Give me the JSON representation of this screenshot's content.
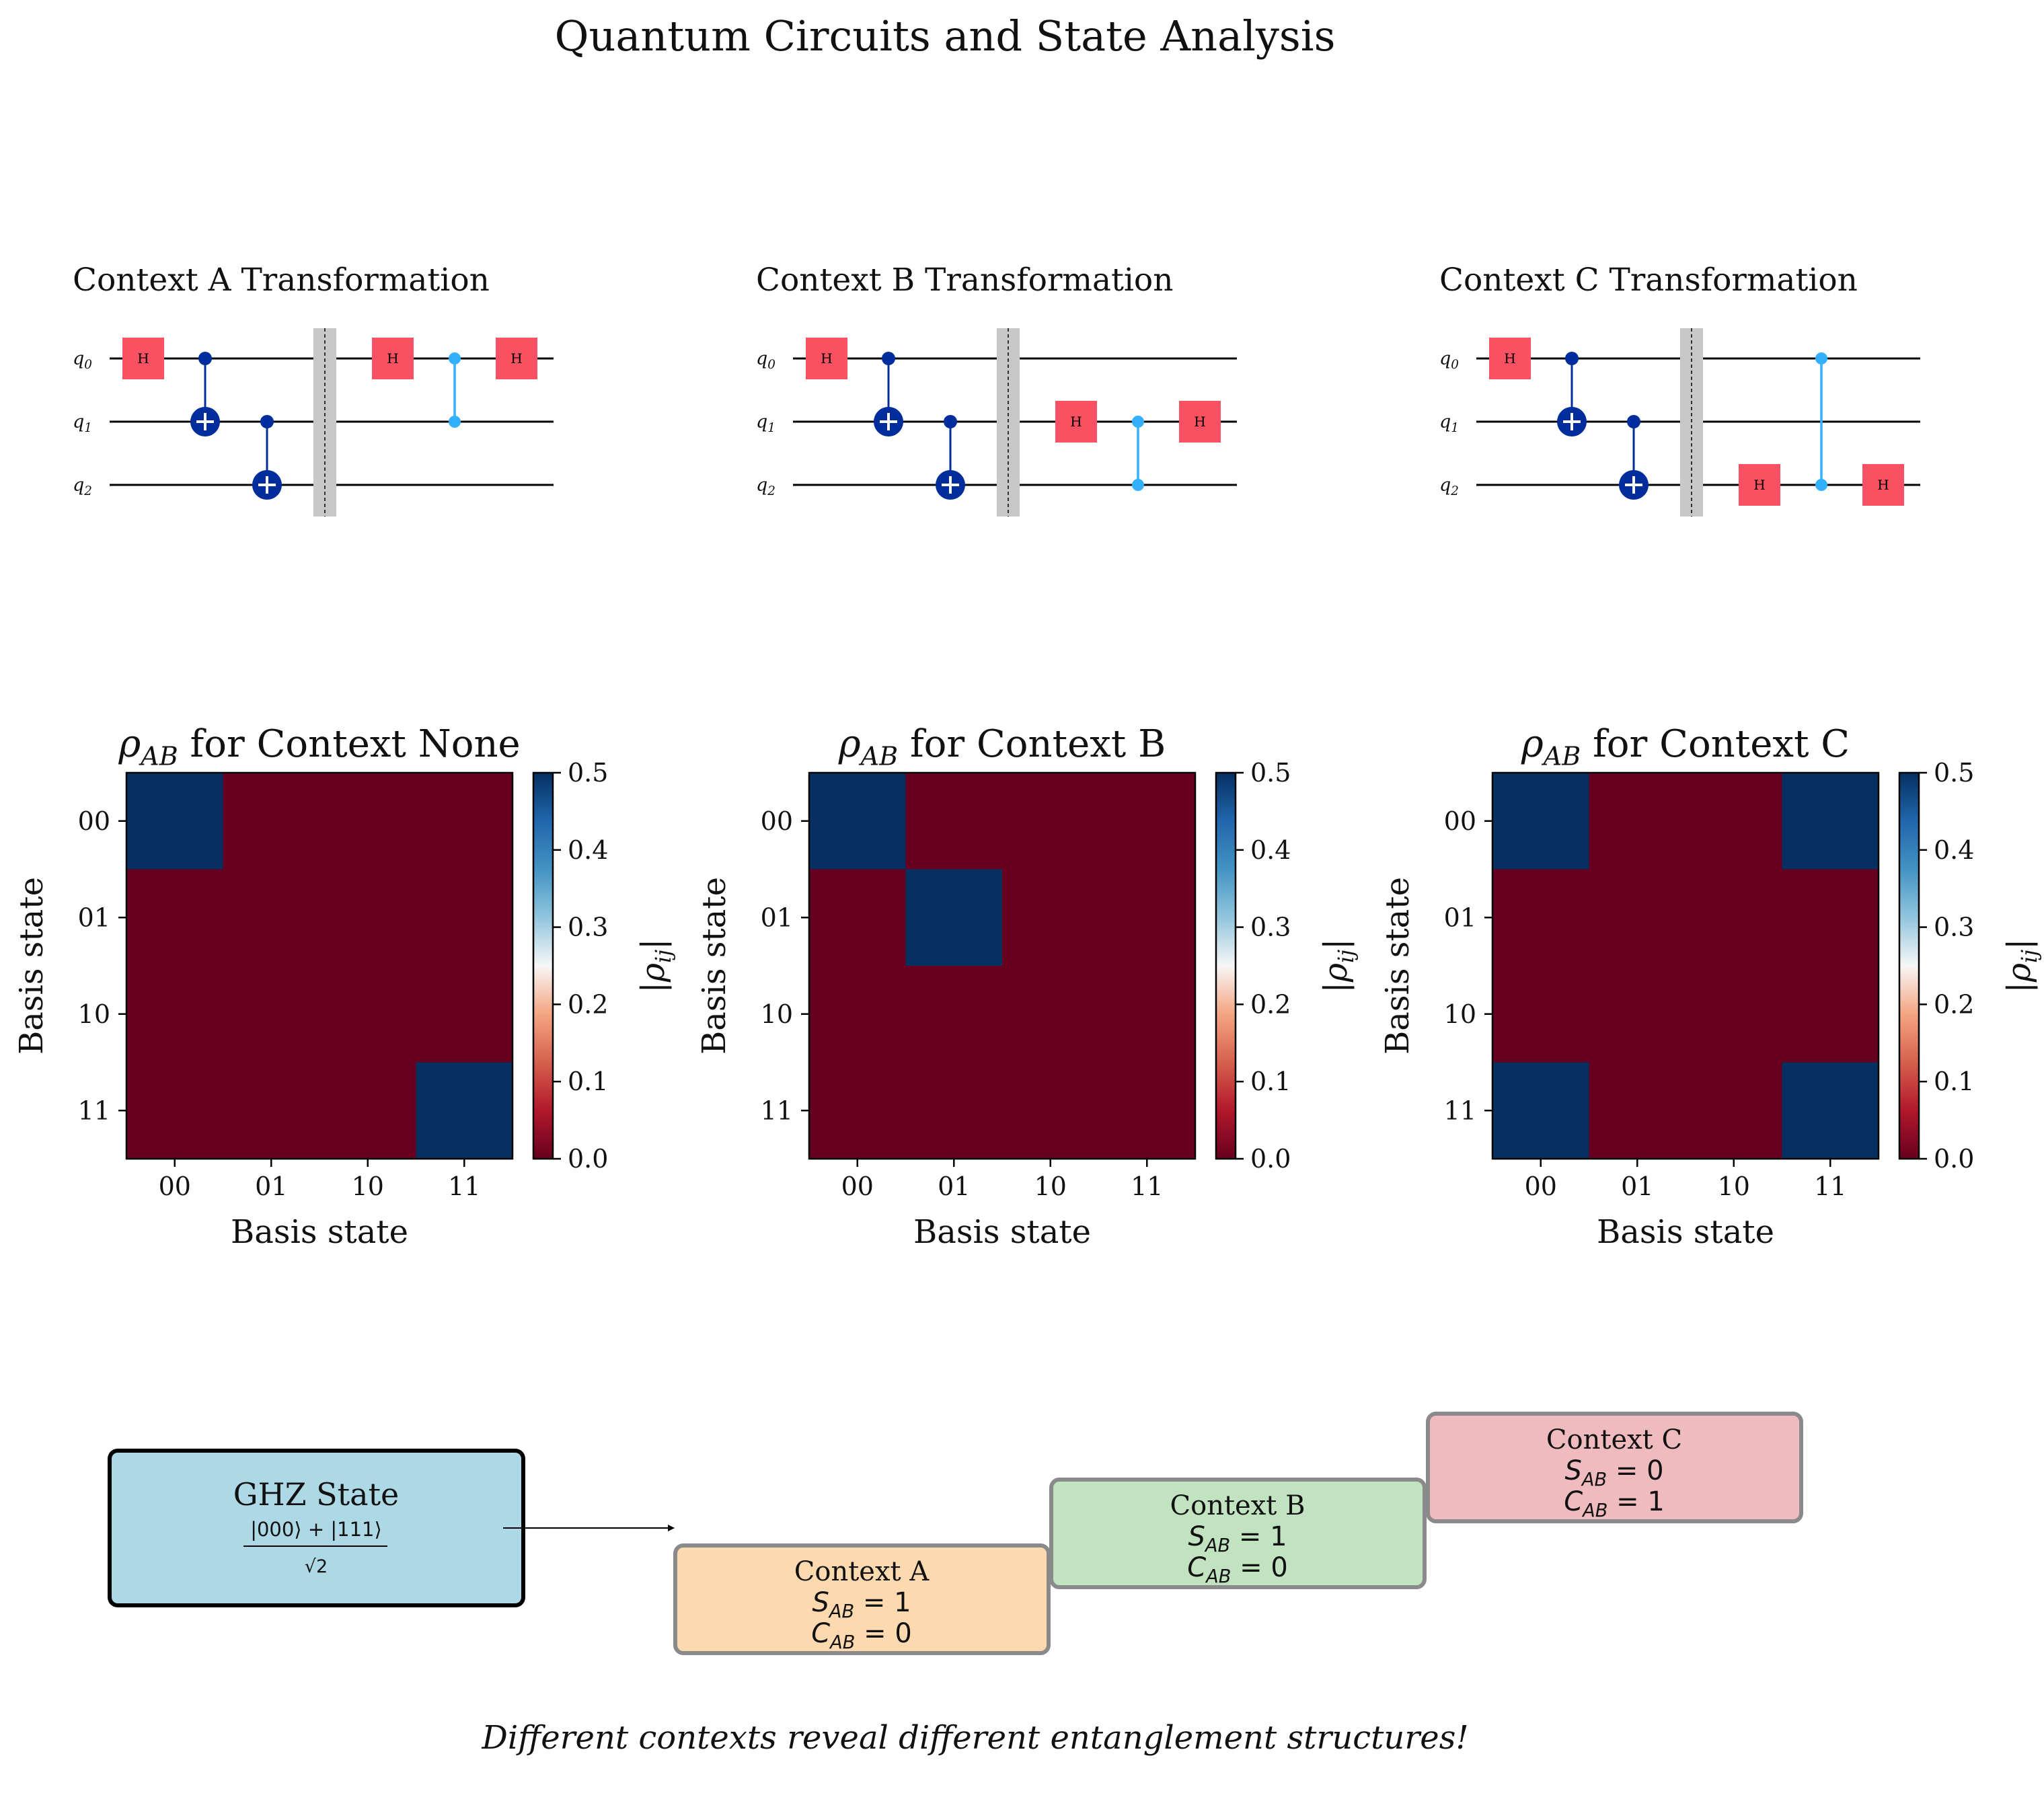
{
  "title": "Quantum Circuits and State Analysis",
  "circuits": [
    {
      "title": "Context A Transformation",
      "gates": [
        {
          "t": "h",
          "q": 0,
          "c": 0
        },
        {
          "t": "cx",
          "c0": 1,
          "q": 0,
          "tq": 1
        },
        {
          "t": "cx",
          "c0": 2,
          "q": 1,
          "tq": 2
        },
        {
          "t": "barrier",
          "c": 3
        },
        {
          "t": "h",
          "q": 0,
          "c": 4
        },
        {
          "t": "cz",
          "c": 5,
          "q": 0,
          "tq": 1
        },
        {
          "t": "h",
          "q": 0,
          "c": 6
        }
      ]
    },
    {
      "title": "Context B Transformation",
      "gates": [
        {
          "t": "h",
          "q": 0,
          "c": 0
        },
        {
          "t": "cx",
          "c0": 1,
          "q": 0,
          "tq": 1
        },
        {
          "t": "cx",
          "c0": 2,
          "q": 1,
          "tq": 2
        },
        {
          "t": "barrier",
          "c": 3
        },
        {
          "t": "h",
          "q": 1,
          "c": 4
        },
        {
          "t": "cz",
          "c": 5,
          "q": 1,
          "tq": 2
        },
        {
          "t": "h",
          "q": 1,
          "c": 6
        }
      ]
    },
    {
      "title": "Context C Transformation",
      "gates": [
        {
          "t": "h",
          "q": 0,
          "c": 0
        },
        {
          "t": "cx",
          "c0": 1,
          "q": 0,
          "tq": 1
        },
        {
          "t": "cx",
          "c0": 2,
          "q": 1,
          "tq": 2
        },
        {
          "t": "barrier",
          "c": 3
        },
        {
          "t": "h",
          "q": 2,
          "c": 4
        },
        {
          "t": "cz",
          "c": 5,
          "q": 0,
          "tq": 2
        },
        {
          "t": "h",
          "q": 2,
          "c": 6
        }
      ]
    }
  ],
  "qubit_labels": [
    "q",
    "q",
    "q"
  ],
  "qubit_subs": [
    "0",
    "1",
    "2"
  ],
  "gate_label": "H",
  "heatmaps": [
    {
      "title_rho": "ρ",
      "title_sub": "AB",
      "title_rest": " for Context None",
      "matrix": [
        [
          0.5,
          0,
          0,
          0
        ],
        [
          0,
          0,
          0,
          0
        ],
        [
          0,
          0,
          0,
          0
        ],
        [
          0,
          0,
          0,
          0.5
        ]
      ]
    },
    {
      "title_rho": "ρ",
      "title_sub": "AB",
      "title_rest": " for Context B",
      "matrix": [
        [
          0.5,
          0,
          0,
          0
        ],
        [
          0,
          0.5,
          0,
          0
        ],
        [
          0,
          0,
          0,
          0
        ],
        [
          0,
          0,
          0,
          0
        ]
      ]
    },
    {
      "title_rho": "ρ",
      "title_sub": "AB",
      "title_rest": " for Context C",
      "matrix": [
        [
          0.5,
          0,
          0,
          0.5
        ],
        [
          0,
          0,
          0,
          0
        ],
        [
          0,
          0,
          0,
          0
        ],
        [
          0.5,
          0,
          0,
          0.5
        ]
      ]
    }
  ],
  "basis_labels": [
    "00",
    "01",
    "10",
    "11"
  ],
  "xlabel": "Basis state",
  "ylabel": "Basis state",
  "colorbar_label": "|ρij|",
  "colorbar_ticks": [
    "0.0",
    "0.1",
    "0.2",
    "0.3",
    "0.4",
    "0.5"
  ],
  "colors": {
    "gate_h": "#fa5262",
    "cnot": "#002d9c",
    "cz": "#33b1ff",
    "barrier": "#c8c8c8",
    "cmap_low": "#67001f",
    "cmap_high": "#053061",
    "ghz_fill": "#add8e6",
    "ctx_a_fill": "#fdd9b0",
    "ctx_b_fill": "#c1e3c0",
    "ctx_c_fill": "#f0bbbe"
  },
  "flow": {
    "ghz_title": "GHZ State",
    "ghz_num": "|000⟩ + |111⟩",
    "ghz_den": "√2",
    "contexts": [
      {
        "name": "Context A",
        "s": "S",
        "s_sub": "AB",
        "s_val": " = 1",
        "c": "C",
        "c_sub": "AB",
        "c_val": " = 0"
      },
      {
        "name": "Context B",
        "s": "S",
        "s_sub": "AB",
        "s_val": " = 1",
        "c": "C",
        "c_sub": "AB",
        "c_val": " = 0"
      },
      {
        "name": "Context C",
        "s": "S",
        "s_sub": "AB",
        "s_val": " = 0",
        "c": "C",
        "c_sub": "AB",
        "c_val": " = 1"
      }
    ]
  },
  "footer": "Different contexts reveal different entanglement structures!"
}
